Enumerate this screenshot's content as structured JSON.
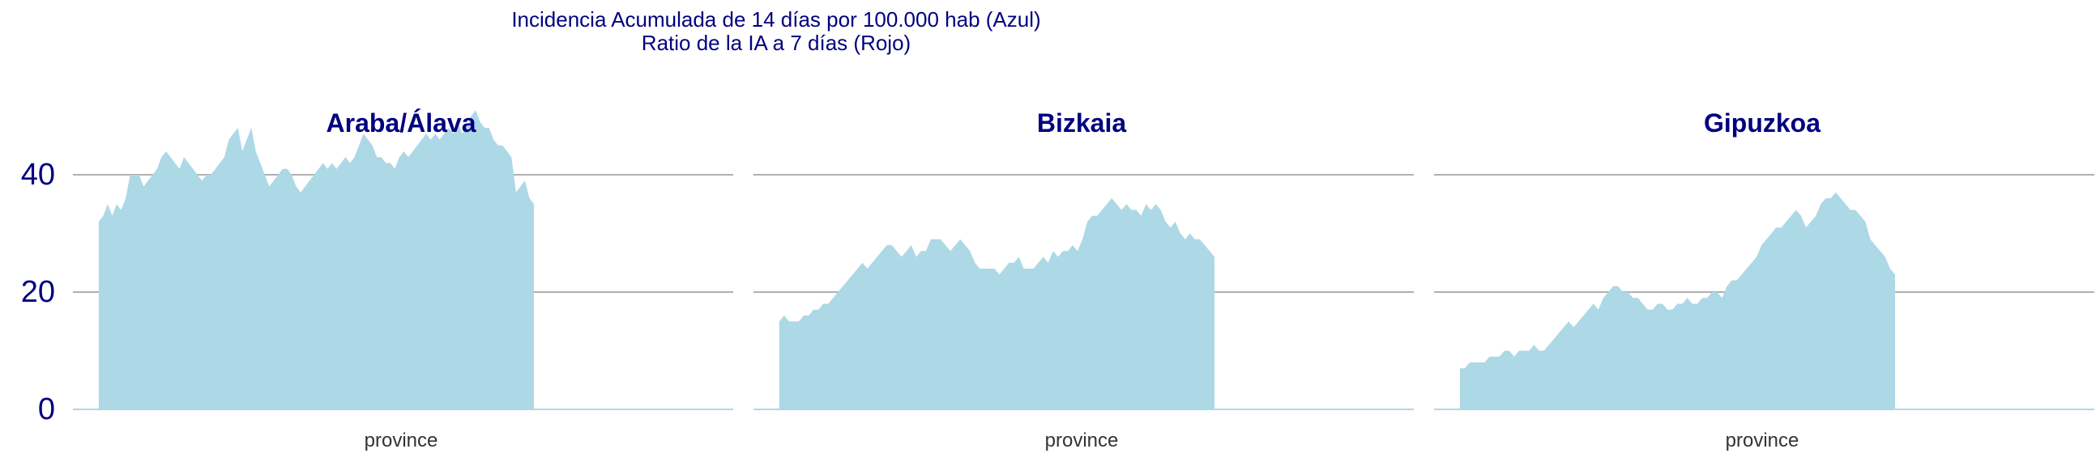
{
  "figure": {
    "title_line1": "Incidencia Acumulada de 14 días por 100.000 hab (Azul)",
    "title_line2": "Ratio de la IA a 7 días (Rojo)"
  },
  "colors": {
    "title": "#000080",
    "area": "#add8e6",
    "grid": "#b0b0b0"
  },
  "chart_data": [
    {
      "type": "area",
      "title": "Araba/Álava",
      "xlabel": "province",
      "ylim": [
        0,
        50
      ],
      "yticks": [
        "0",
        "20",
        "40"
      ],
      "grid": "horizontal",
      "x_max": 100,
      "values": [
        32,
        33,
        35,
        33,
        35,
        34,
        36,
        40,
        40,
        40,
        38,
        39,
        40,
        41,
        43,
        44,
        43,
        42,
        41,
        43,
        42,
        41,
        40,
        39,
        40,
        40,
        41,
        42,
        43,
        46,
        47,
        48,
        44,
        46,
        48,
        44,
        42,
        40,
        38,
        39,
        40,
        41,
        41,
        40,
        38,
        37,
        38,
        39,
        40,
        41,
        42,
        41,
        42,
        41,
        42,
        43,
        42,
        43,
        45,
        47,
        46,
        45,
        43,
        43,
        42,
        42,
        41,
        43,
        44,
        43,
        44,
        45,
        46,
        47,
        46,
        47,
        46,
        47,
        48,
        47,
        49,
        47,
        48,
        50,
        51,
        49,
        48,
        48,
        46,
        45,
        45,
        44,
        43,
        37,
        38,
        39,
        36,
        35
      ]
    },
    {
      "type": "area",
      "title": "Bizkaia",
      "xlabel": "province",
      "ylim": [
        0,
        50
      ],
      "yticks": [
        "0",
        "20",
        "40"
      ],
      "grid": "horizontal",
      "x_max": 100,
      "values": [
        15,
        16,
        15,
        15,
        15,
        16,
        16,
        17,
        17,
        18,
        18,
        19,
        20,
        21,
        22,
        23,
        24,
        25,
        24,
        25,
        26,
        27,
        28,
        28,
        27,
        26,
        27,
        28,
        26,
        27,
        27,
        29,
        29,
        29,
        28,
        27,
        28,
        29,
        28,
        27,
        25,
        24,
        24,
        24,
        24,
        23,
        24,
        25,
        25,
        26,
        24,
        24,
        24,
        25,
        26,
        25,
        27,
        26,
        27,
        27,
        28,
        27,
        29,
        32,
        33,
        33,
        34,
        35,
        36,
        35,
        34,
        35,
        34,
        34,
        33,
        35,
        34,
        35,
        34,
        32,
        31,
        32,
        30,
        29,
        30,
        29,
        29,
        28,
        27,
        26
      ]
    },
    {
      "type": "area",
      "title": "Gipuzkoa",
      "xlabel": "province",
      "ylim": [
        0,
        50
      ],
      "yticks": [
        "0",
        "20",
        "40"
      ],
      "grid": "horizontal",
      "x_max": 100,
      "values": [
        7,
        7,
        8,
        8,
        8,
        8,
        9,
        9,
        9,
        10,
        10,
        9,
        10,
        10,
        10,
        11,
        10,
        10,
        11,
        12,
        13,
        14,
        15,
        14,
        15,
        16,
        17,
        18,
        17,
        19,
        20,
        21,
        21,
        20,
        20,
        19,
        19,
        18,
        17,
        17,
        18,
        18,
        17,
        17,
        18,
        18,
        19,
        18,
        18,
        19,
        19,
        20,
        20,
        19,
        21,
        22,
        22,
        23,
        24,
        25,
        26,
        28,
        29,
        30,
        31,
        31,
        32,
        33,
        34,
        33,
        31,
        32,
        33,
        35,
        36,
        36,
        37,
        36,
        35,
        34,
        34,
        33,
        32,
        29,
        28,
        27,
        26,
        24,
        23
      ]
    }
  ]
}
